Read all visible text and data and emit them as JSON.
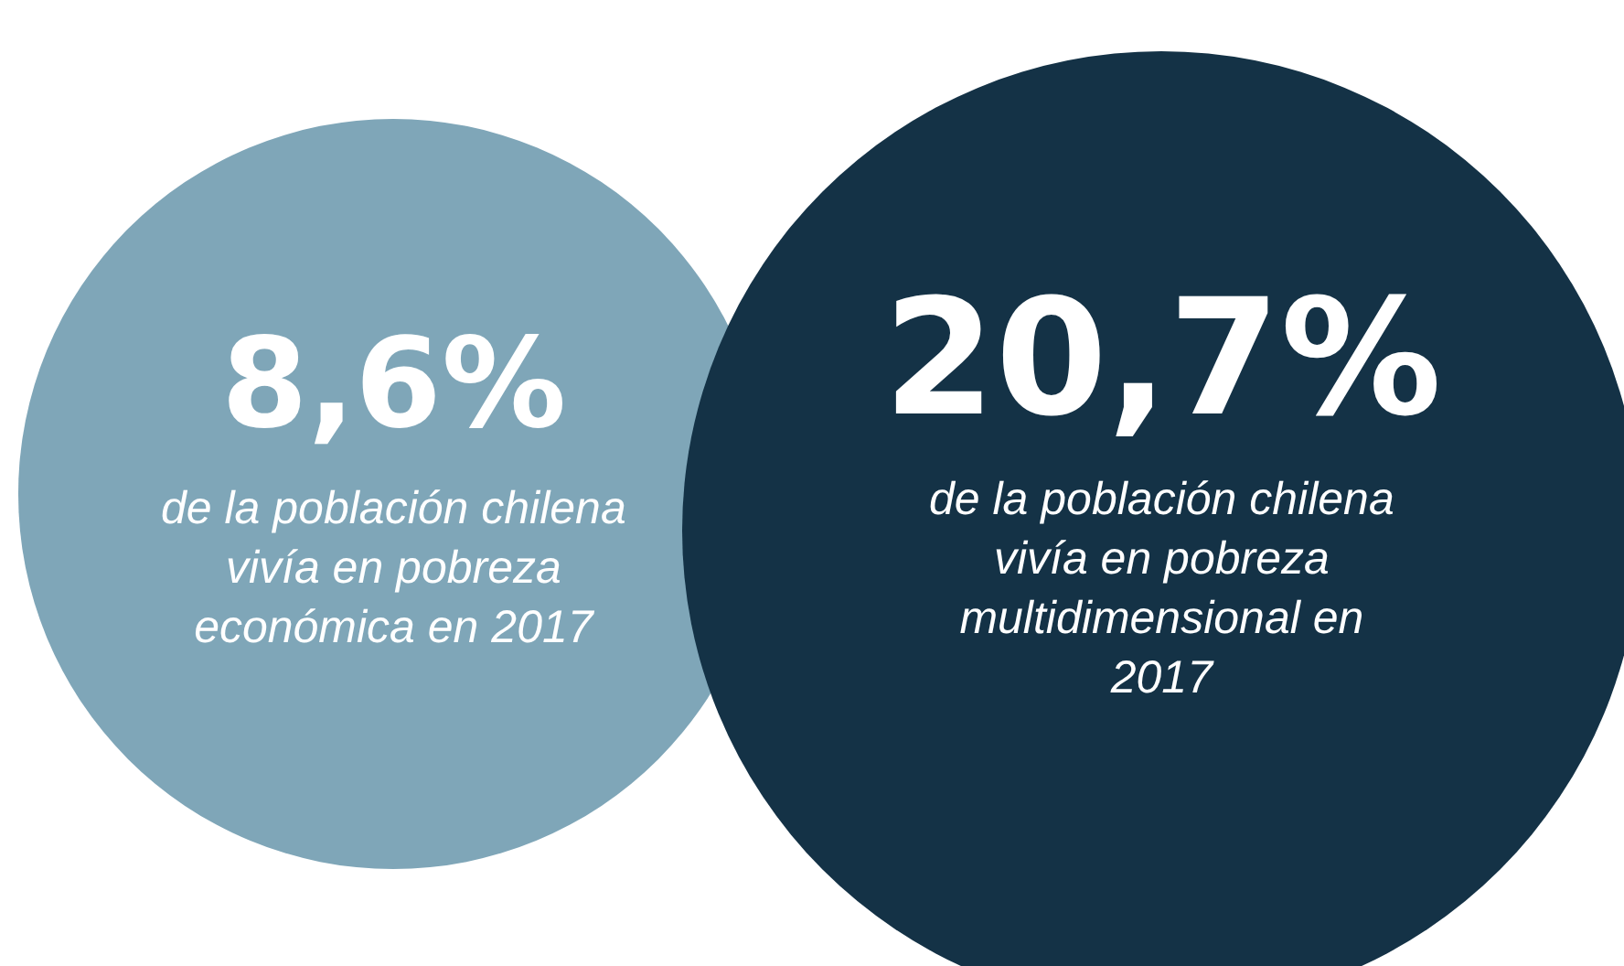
{
  "chart_data": {
    "type": "other",
    "categories": [
      "de la población chilena vivía en pobreza económica en 2017",
      "de la población chilena vivía en pobreza multidimensional en 2017"
    ],
    "values": [
      8.6,
      20.7
    ],
    "value_labels": [
      "8,6%",
      "20,7%"
    ],
    "colors": [
      "#7fa6b8",
      "#143246"
    ]
  }
}
